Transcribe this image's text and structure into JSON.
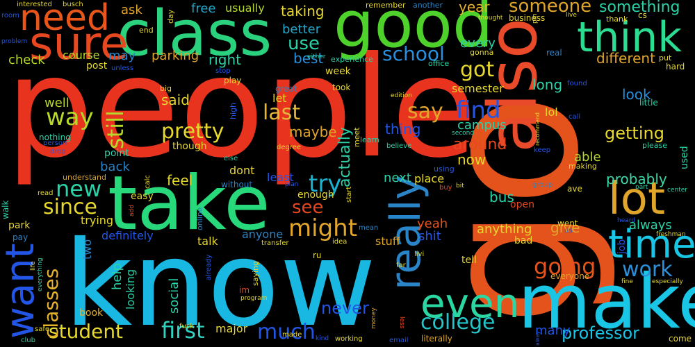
{
  "words": [
    {
      "text": "people",
      "color": "#e8331f"
    },
    {
      "text": "go",
      "color": "#e4531c"
    },
    {
      "text": "know",
      "color": "#19b8e3"
    },
    {
      "text": "take",
      "color": "#27d97a"
    },
    {
      "text": "make",
      "color": "#19c6e5"
    },
    {
      "text": "good",
      "color": "#4ed12a"
    },
    {
      "text": "class",
      "color": "#2bd27e"
    },
    {
      "text": "also",
      "color": "#e94a2a"
    },
    {
      "text": "think",
      "color": "#2bdc92"
    },
    {
      "text": "sure",
      "color": "#e8481f"
    },
    {
      "text": "need",
      "color": "#e8561c"
    },
    {
      "text": "lot",
      "color": "#e0a52a"
    },
    {
      "text": "time",
      "color": "#19c6e5"
    },
    {
      "text": "really",
      "color": "#2a84c8"
    },
    {
      "text": "even",
      "color": "#2ad6a2"
    },
    {
      "text": "want",
      "color": "#2356e6"
    },
    {
      "text": "college",
      "color": "#23c6c8"
    },
    {
      "text": "school",
      "color": "#2a90dc"
    },
    {
      "text": "first",
      "color": "#2fd3c0"
    },
    {
      "text": "student",
      "color": "#e6d82f"
    },
    {
      "text": "much",
      "color": "#2356e6"
    },
    {
      "text": "going",
      "color": "#e4531c"
    },
    {
      "text": "work",
      "color": "#2a90dc"
    },
    {
      "text": "professor",
      "color": "#19c6e5"
    },
    {
      "text": "classes",
      "color": "#e6b32a"
    },
    {
      "text": "might",
      "color": "#e0a52a"
    },
    {
      "text": "new",
      "color": "#2bd2a8"
    },
    {
      "text": "since",
      "color": "#e6d82f"
    },
    {
      "text": "try",
      "color": "#19b2d0"
    },
    {
      "text": "find",
      "color": "#2356e6"
    },
    {
      "text": "say",
      "color": "#e0a52a"
    },
    {
      "text": "last",
      "color": "#e4b73a"
    },
    {
      "text": "pretty",
      "color": "#e6d82f"
    },
    {
      "text": "still",
      "color": "#b6d82a"
    },
    {
      "text": "way",
      "color": "#b6d82a"
    },
    {
      "text": "got",
      "color": "#e6d82f"
    },
    {
      "text": "someone",
      "color": "#e0a52a"
    },
    {
      "text": "something",
      "color": "#2bd2a8"
    },
    {
      "text": "never",
      "color": "#2356e6"
    },
    {
      "text": "see",
      "color": "#e8481f"
    },
    {
      "text": "getting",
      "color": "#e6d82f"
    },
    {
      "text": "probably",
      "color": "#3fd8a8"
    },
    {
      "text": "different",
      "color": "#e0a52a"
    },
    {
      "text": "every",
      "color": "#2bd2a8"
    },
    {
      "text": "year",
      "color": "#e6b32a"
    },
    {
      "text": "use",
      "color": "#2bd2a8"
    },
    {
      "text": "better",
      "color": "#23a6c8"
    },
    {
      "text": "taking",
      "color": "#e6d82f"
    },
    {
      "text": "free",
      "color": "#23a6c8"
    },
    {
      "text": "usually",
      "color": "#b6d82a"
    },
    {
      "text": "ask",
      "color": "#e0a52a"
    },
    {
      "text": "best",
      "color": "#2a90dc"
    },
    {
      "text": "right",
      "color": "#2bd2a8"
    },
    {
      "text": "parking",
      "color": "#e0a52a"
    },
    {
      "text": "course",
      "color": "#b6d82a"
    },
    {
      "text": "may",
      "color": "#2a84c8"
    },
    {
      "text": "check",
      "color": "#b6d82a"
    },
    {
      "text": "well",
      "color": "#b6d82a"
    },
    {
      "text": "back",
      "color": "#2a84c8"
    },
    {
      "text": "feel",
      "color": "#e6d82f"
    },
    {
      "text": "give",
      "color": "#e0a52a"
    },
    {
      "text": "always",
      "color": "#2bd2a8"
    },
    {
      "text": "look",
      "color": "#2a90dc"
    },
    {
      "text": "long",
      "color": "#2bd2a8"
    },
    {
      "text": "said",
      "color": "#e6d82f"
    },
    {
      "text": "maybe",
      "color": "#e0a52a"
    },
    {
      "text": "thing",
      "color": "#2356e6"
    },
    {
      "text": "campus",
      "color": "#2bd2a8"
    },
    {
      "text": "around",
      "color": "#e8481f"
    },
    {
      "text": "now",
      "color": "#e6d82f"
    },
    {
      "text": "actually",
      "color": "#2bd2a8"
    },
    {
      "text": "next",
      "color": "#2bd2a8"
    },
    {
      "text": "place",
      "color": "#e6d82f"
    },
    {
      "text": "able",
      "color": "#b6d82a"
    },
    {
      "text": "semester",
      "color": "#e6d82f"
    },
    {
      "text": "week",
      "color": "#e6d82f"
    },
    {
      "text": "bus",
      "color": "#2bd2a8"
    },
    {
      "text": "anything",
      "color": "#e6d82f"
    },
    {
      "text": "yeah",
      "color": "#e4531c"
    },
    {
      "text": "stuff",
      "color": "#e0a52a"
    },
    {
      "text": "talk",
      "color": "#e6d82f"
    },
    {
      "text": "definitely",
      "color": "#2356e6"
    },
    {
      "text": "help",
      "color": "#2bd2a8"
    },
    {
      "text": "social",
      "color": "#2bd2a8"
    },
    {
      "text": "major",
      "color": "#e6d82f"
    },
    {
      "text": "trying",
      "color": "#e6d82f"
    },
    {
      "text": "looking",
      "color": "#2bd2a8"
    },
    {
      "text": "two",
      "color": "#2a84c8"
    },
    {
      "text": "easy",
      "color": "#e6d82f"
    },
    {
      "text": "least",
      "color": "#2356e6"
    },
    {
      "text": "enough",
      "color": "#e6d82f"
    },
    {
      "text": "dont",
      "color": "#e6d82f"
    },
    {
      "text": "anyone",
      "color": "#2a84c8"
    },
    {
      "text": "went",
      "color": "#e6d82f"
    },
    {
      "text": "open",
      "color": "#e8481f"
    },
    {
      "text": "job",
      "color": "#2356e6"
    },
    {
      "text": "lol",
      "color": "#e6d82f"
    },
    {
      "text": "point",
      "color": "#2bd2a8"
    },
    {
      "text": "though",
      "color": "#e6d82f"
    },
    {
      "text": "let",
      "color": "#e6d82f"
    },
    {
      "text": "post",
      "color": "#e6d82f"
    },
    {
      "text": "park",
      "color": "#e6d82f"
    },
    {
      "text": "pay",
      "color": "#2a84c8"
    },
    {
      "text": "book",
      "color": "#e6b32a"
    },
    {
      "text": "shit",
      "color": "#2356e6"
    },
    {
      "text": "bad",
      "color": "#e6d82f"
    },
    {
      "text": "tell",
      "color": "#e6d82f"
    },
    {
      "text": "many",
      "color": "#2356e6"
    },
    {
      "text": "come",
      "color": "#e6d82f"
    },
    {
      "text": "everyone",
      "color": "#e0a52a"
    },
    {
      "text": "literally",
      "color": "#e0a52a"
    },
    {
      "text": "business",
      "color": "#e6d82f"
    },
    {
      "text": "remember",
      "color": "#e6d82f"
    },
    {
      "text": "another",
      "color": "#2a84c8"
    },
    {
      "text": "experience",
      "color": "#2bd2a8"
    },
    {
      "text": "office",
      "color": "#2bd2a8"
    },
    {
      "text": "gonna",
      "color": "#e6d82f"
    },
    {
      "text": "real",
      "color": "#2a84c8"
    },
    {
      "text": "hard",
      "color": "#e6d82f"
    },
    {
      "text": "put",
      "color": "#e6d82f"
    },
    {
      "text": "little",
      "color": "#2bd2a8"
    },
    {
      "text": "please",
      "color": "#2bd2a8"
    },
    {
      "text": "used",
      "color": "#2bd2a8"
    },
    {
      "text": "making",
      "color": "#e6d82f"
    },
    {
      "text": "keep",
      "color": "#2356e6"
    },
    {
      "text": "found",
      "color": "#2356e6"
    },
    {
      "text": "call",
      "color": "#2356e6"
    },
    {
      "text": "end",
      "color": "#e6d82f"
    },
    {
      "text": "day",
      "color": "#e6d82f"
    },
    {
      "text": "unless",
      "color": "#2356e6"
    },
    {
      "text": "stop",
      "color": "#2356e6"
    },
    {
      "text": "play",
      "color": "#e6d82f"
    },
    {
      "text": "big",
      "color": "#e6d82f"
    },
    {
      "text": "great",
      "color": "#2a84c8"
    },
    {
      "text": "took",
      "color": "#e6d82f"
    },
    {
      "text": "high",
      "color": "#2356e6"
    },
    {
      "text": "meet",
      "color": "#e6d82f"
    },
    {
      "text": "degree",
      "color": "#e6d82f"
    },
    {
      "text": "learn",
      "color": "#2bd2a8"
    },
    {
      "text": "believe",
      "color": "#2bd2a8"
    },
    {
      "text": "nothing",
      "color": "#2bd2a8"
    },
    {
      "text": "drop",
      "color": "#2356e6"
    },
    {
      "text": "person",
      "color": "#2356e6"
    },
    {
      "text": "interested",
      "color": "#e6d82f"
    },
    {
      "text": "busch",
      "color": "#e6d82f"
    },
    {
      "text": "room",
      "color": "#2356e6"
    },
    {
      "text": "problem",
      "color": "#2356e6"
    },
    {
      "text": "either",
      "color": "#2bd2a8"
    },
    {
      "text": "else",
      "color": "#2bd2a8"
    },
    {
      "text": "using",
      "color": "#2356e6"
    },
    {
      "text": "understand",
      "color": "#e0a52a"
    },
    {
      "text": "without",
      "color": "#2a84c8"
    },
    {
      "text": "calc",
      "color": "#e6d82f"
    },
    {
      "text": "read",
      "color": "#e6d82f"
    },
    {
      "text": "walk",
      "color": "#2bd2a8"
    },
    {
      "text": "online",
      "color": "#2a84c8"
    },
    {
      "text": "add",
      "color": "#e8481f"
    },
    {
      "text": "plan",
      "color": "#2356e6"
    },
    {
      "text": "start",
      "color": "#e6d82f"
    },
    {
      "text": "transfer",
      "color": "#e6d82f"
    },
    {
      "text": "mean",
      "color": "#2a84c8"
    },
    {
      "text": "idea",
      "color": "#e6d82f"
    },
    {
      "text": "ru",
      "color": "#e6d82f"
    },
    {
      "text": "already",
      "color": "#2356e6"
    },
    {
      "text": "saying",
      "color": "#e6d82f"
    },
    {
      "text": "im",
      "color": "#e8481f"
    },
    {
      "text": "program",
      "color": "#e6d82f"
    },
    {
      "text": "made",
      "color": "#e6d82f"
    },
    {
      "text": "fuck",
      "color": "#e6d82f"
    },
    {
      "text": "life",
      "color": "#e6d82f"
    },
    {
      "text": "everything",
      "color": "#2bd2a8"
    },
    {
      "text": "safe",
      "color": "#e6d82f"
    },
    {
      "text": "club",
      "color": "#2bd2a8"
    },
    {
      "text": "kind",
      "color": "#2356e6"
    },
    {
      "text": "working",
      "color": "#e6d82f"
    },
    {
      "text": "money",
      "color": "#e0a52a"
    },
    {
      "text": "email",
      "color": "#2356e6"
    },
    {
      "text": "less",
      "color": "#e8481f"
    },
    {
      "text": "far",
      "color": "#e6d82f"
    },
    {
      "text": "livi",
      "color": "#e6d82f"
    },
    {
      "text": "us",
      "color": "#2356e6"
    },
    {
      "text": "ave",
      "color": "#e6d82f"
    },
    {
      "text": "group",
      "color": "#2a84c8"
    },
    {
      "text": "part",
      "color": "#2bd2a8"
    },
    {
      "text": "center",
      "color": "#2bd2a8"
    },
    {
      "text": "heard",
      "color": "#2356e6"
    },
    {
      "text": "fine",
      "color": "#e6d82f"
    },
    {
      "text": "especially",
      "color": "#e6d82f"
    },
    {
      "text": "freshman",
      "color": "#e6d82f"
    },
    {
      "text": "away",
      "color": "#2356e6"
    },
    {
      "text": "buy",
      "color": "#e8481f"
    },
    {
      "text": "bit",
      "color": "#e6d82f"
    },
    {
      "text": "second",
      "color": "#2bd2a8"
    },
    {
      "text": "recommend",
      "color": "#e6d82f"
    },
    {
      "text": "edition",
      "color": "#e6d82f"
    },
    {
      "text": "thought",
      "color": "#e6d82f"
    },
    {
      "text": "live",
      "color": "#e6d82f"
    },
    {
      "text": "thank",
      "color": "#e6d82f"
    },
    {
      "text": "cs",
      "color": "#e6d82f"
    },
    {
      "text": "pm",
      "color": "#e6d82f"
    }
  ]
}
